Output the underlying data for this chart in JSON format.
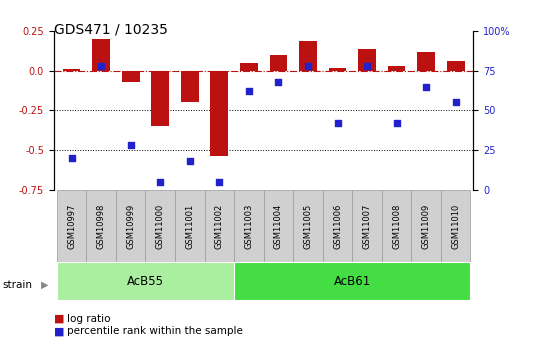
{
  "title": "GDS471 / 10235",
  "samples": [
    "GSM10997",
    "GSM10998",
    "GSM10999",
    "GSM11000",
    "GSM11001",
    "GSM11002",
    "GSM11003",
    "GSM11004",
    "GSM11005",
    "GSM11006",
    "GSM11007",
    "GSM11008",
    "GSM11009",
    "GSM11010"
  ],
  "log_ratio": [
    0.01,
    0.2,
    -0.07,
    -0.35,
    -0.2,
    -0.54,
    0.05,
    0.1,
    0.19,
    0.02,
    0.14,
    0.03,
    0.12,
    0.06
  ],
  "percentile": [
    20,
    78,
    28,
    5,
    18,
    5,
    62,
    68,
    78,
    42,
    78,
    42,
    65,
    55
  ],
  "bar_color": "#bb1111",
  "dot_color": "#2222cc",
  "groups": [
    {
      "label": "AcB55",
      "start": 0,
      "end": 6,
      "color": "#aaeea0"
    },
    {
      "label": "AcB61",
      "start": 6,
      "end": 14,
      "color": "#44dd44"
    }
  ],
  "ylim_left": [
    -0.75,
    0.25
  ],
  "ylim_right": [
    0,
    100
  ],
  "yticks_left": [
    -0.75,
    -0.5,
    -0.25,
    0.0,
    0.25
  ],
  "yticks_right": [
    0,
    25,
    50,
    75,
    100
  ],
  "dotted_lines": [
    -0.25,
    -0.5
  ],
  "background_color": "#ffffff",
  "strain_label": "strain",
  "legend_log_ratio": "log ratio",
  "legend_percentile": "percentile rank within the sample",
  "cell_color": "#d0d0d0",
  "cell_edge": "#999999"
}
